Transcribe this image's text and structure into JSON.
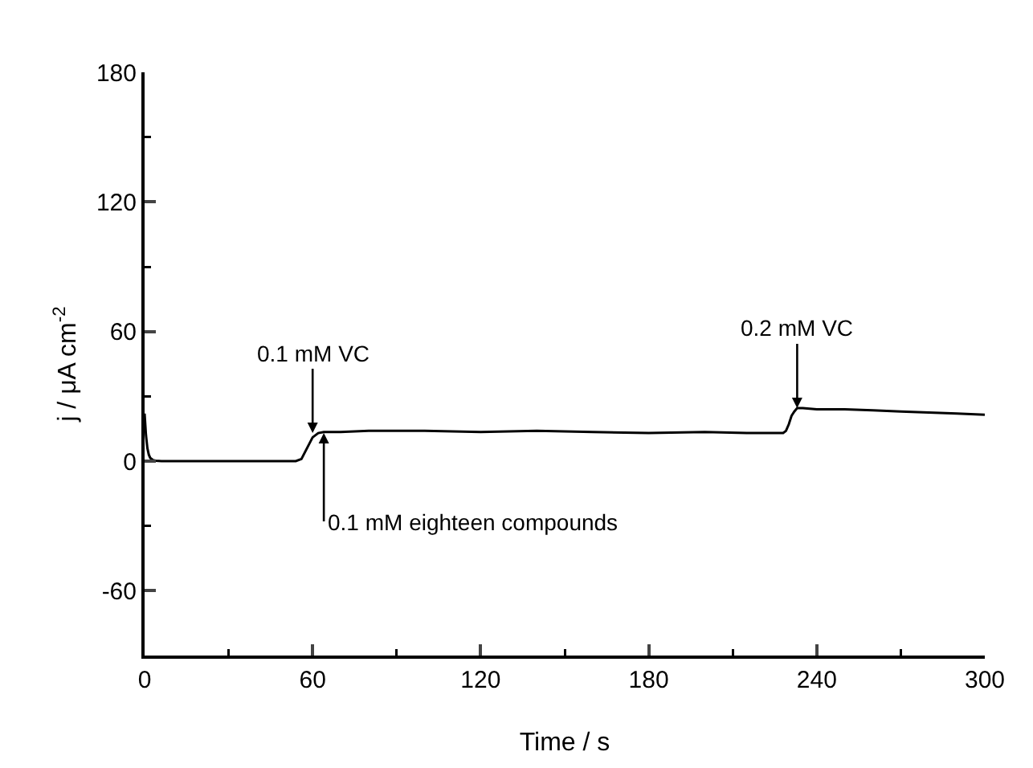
{
  "chart_data": {
    "type": "line",
    "xlabel": "Time / s",
    "ylabel": "j / μA cm$^{-2}$",
    "x": [
      0,
      0.5,
      1,
      1.5,
      2,
      3,
      4,
      6,
      10,
      20,
      30,
      40,
      50,
      54,
      56,
      58,
      60,
      62,
      64,
      70,
      80,
      100,
      120,
      140,
      160,
      180,
      200,
      215,
      225,
      228,
      229,
      230,
      231,
      232,
      233,
      235,
      240,
      250,
      260,
      270,
      280,
      290,
      300
    ],
    "series": [
      {
        "color": "#000000",
        "values": [
          22,
          12,
          6,
          3,
          1.5,
          0.5,
          0.2,
          0,
          0,
          0,
          0,
          0,
          0,
          0,
          1,
          6,
          11,
          13,
          13.5,
          13.5,
          14,
          14,
          13.5,
          14,
          13.5,
          13,
          13.5,
          13,
          13,
          13,
          14,
          17,
          21,
          23,
          24.5,
          24.5,
          24,
          24,
          23.5,
          23,
          22.5,
          22,
          21.5
        ]
      }
    ],
    "xlim": [
      0,
      300
    ],
    "xticks": [
      0,
      60,
      120,
      180,
      240,
      300
    ],
    "ylim": [
      -90,
      180
    ],
    "yticks": [
      -60,
      0,
      60,
      120,
      180
    ],
    "annotations": [
      {
        "text": "0.1 mM VC",
        "x": 60,
        "y": 13
      },
      {
        "text": "0.1 mM eighteen compounds",
        "x": 64,
        "y": 13
      },
      {
        "text": "0.2 mM VC",
        "x": 233,
        "y": 24.5
      }
    ],
    "grid": false,
    "marker": "none",
    "line_style": "solid"
  }
}
